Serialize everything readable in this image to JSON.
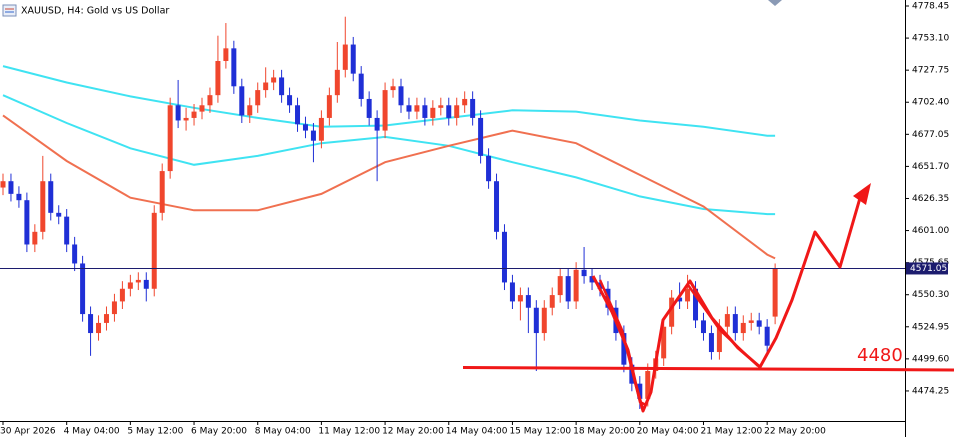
{
  "chart_data": {
    "type": "candlestick",
    "title": "XAUUSD, H4: Gold vs US Dollar",
    "categories": [
      "30 Apr 2026",
      null,
      null,
      null,
      null,
      null,
      null,
      null,
      "4 May 04:00",
      null,
      null,
      null,
      null,
      null,
      null,
      null,
      "5 May 12:00",
      null,
      null,
      null,
      null,
      null,
      null,
      null,
      "6 May 20:00",
      null,
      null,
      null,
      null,
      null,
      null,
      null,
      "8 May 04:00",
      null,
      null,
      null,
      null,
      null,
      null,
      null,
      "11 May 12:00",
      null,
      null,
      null,
      null,
      null,
      null,
      null,
      "12 May 20:00",
      null,
      null,
      null,
      null,
      null,
      null,
      null,
      "14 May 04:00",
      null,
      null,
      null,
      null,
      null,
      null,
      null,
      "15 May 12:00",
      null,
      null,
      null,
      null,
      null,
      null,
      null,
      "18 May 20:00",
      null,
      null,
      null,
      null,
      null,
      null,
      null,
      "20 May 04:00",
      null,
      null,
      null,
      null,
      null,
      null,
      null,
      "21 May 12:00",
      null,
      null,
      null,
      null,
      null,
      null,
      null,
      "22 May 20:00",
      null
    ],
    "open": [
      4635,
      4640,
      4630,
      4625,
      4590,
      4600,
      4640,
      4615,
      4612,
      4590,
      4575,
      4535,
      4520,
      4528,
      4535,
      4545,
      4555,
      4560,
      4562,
      4555,
      4615,
      4648,
      4700,
      4688,
      4690,
      4695,
      4700,
      4708,
      4735,
      4745,
      4715,
      4692,
      4700,
      4712,
      4718,
      4722,
      4708,
      4700,
      4685,
      4680,
      4672,
      4690,
      4708,
      4728,
      4748,
      4725,
      4705,
      4690,
      4680,
      4712,
      4715,
      4700,
      4695,
      4700,
      4690,
      4698,
      4700,
      4690,
      4700,
      4705,
      4690,
      4660,
      4640,
      4600,
      4560,
      4545,
      4550,
      4540,
      4520,
      4540,
      4550,
      4565,
      4545,
      4570,
      4565,
      4560,
      4555,
      4540,
      4520,
      4495,
      4480,
      4468,
      4490,
      4500,
      4525,
      4548,
      4545,
      4555,
      4530,
      4520,
      4505,
      4525,
      4535,
      4520,
      4528,
      4530,
      4525,
      4533
    ],
    "high": [
      4646,
      4646,
      4636,
      4631,
      4606,
      4660,
      4646,
      4621,
      4618,
      4596,
      4581,
      4541,
      4534,
      4541,
      4551,
      4561,
      4566,
      4568,
      4568,
      4621,
      4654,
      4706,
      4720,
      4698,
      4701,
      4706,
      4714,
      4755,
      4765,
      4751,
      4721,
      4706,
      4718,
      4730,
      4728,
      4728,
      4714,
      4706,
      4691,
      4686,
      4696,
      4714,
      4750,
      4770,
      4754,
      4731,
      4711,
      4696,
      4718,
      4721,
      4721,
      4706,
      4706,
      4706,
      4704,
      4706,
      4706,
      4706,
      4711,
      4711,
      4696,
      4666,
      4646,
      4606,
      4566,
      4556,
      4556,
      4546,
      4546,
      4556,
      4571,
      4571,
      4576,
      4588,
      4571,
      4566,
      4561,
      4546,
      4526,
      4501,
      4486,
      4496,
      4506,
      4531,
      4554,
      4560,
      4566,
      4561,
      4536,
      4526,
      4531,
      4541,
      4541,
      4534,
      4536,
      4536,
      4531,
      4575
    ],
    "low": [
      4629,
      4624,
      4619,
      4584,
      4584,
      4594,
      4609,
      4606,
      4584,
      4569,
      4529,
      4502,
      4514,
      4522,
      4529,
      4539,
      4549,
      4554,
      4545,
      4549,
      4609,
      4642,
      4682,
      4680,
      4684,
      4689,
      4694,
      4702,
      4729,
      4709,
      4686,
      4686,
      4694,
      4706,
      4712,
      4702,
      4694,
      4679,
      4674,
      4655,
      4666,
      4684,
      4702,
      4722,
      4719,
      4699,
      4684,
      4640,
      4674,
      4706,
      4694,
      4689,
      4689,
      4684,
      4684,
      4692,
      4684,
      4684,
      4694,
      4684,
      4654,
      4634,
      4594,
      4554,
      4539,
      4530,
      4520,
      4490,
      4514,
      4534,
      4544,
      4539,
      4539,
      4559,
      4554,
      4549,
      4534,
      4514,
      4489,
      4474,
      4460,
      4462,
      4484,
      4494,
      4519,
      4539,
      4539,
      4524,
      4514,
      4499,
      4499,
      4519,
      4514,
      4514,
      4522,
      4519,
      4504,
      4527
    ],
    "close": [
      4640,
      4630,
      4625,
      4590,
      4600,
      4640,
      4615,
      4612,
      4590,
      4575,
      4535,
      4520,
      4528,
      4535,
      4545,
      4555,
      4560,
      4562,
      4555,
      4615,
      4648,
      4700,
      4688,
      4690,
      4695,
      4700,
      4708,
      4735,
      4745,
      4715,
      4692,
      4700,
      4712,
      4718,
      4722,
      4708,
      4700,
      4685,
      4680,
      4672,
      4690,
      4708,
      4728,
      4748,
      4725,
      4705,
      4690,
      4680,
      4712,
      4715,
      4700,
      4695,
      4700,
      4690,
      4698,
      4700,
      4690,
      4700,
      4705,
      4690,
      4660,
      4640,
      4600,
      4560,
      4545,
      4550,
      4540,
      4520,
      4540,
      4550,
      4565,
      4545,
      4570,
      4565,
      4560,
      4555,
      4540,
      4520,
      4495,
      4480,
      4468,
      4490,
      4500,
      4525,
      4548,
      4545,
      4555,
      4530,
      4520,
      4505,
      4525,
      4535,
      4520,
      4528,
      4530,
      4525,
      4510,
      4571.05
    ],
    "up_color": "#f0462d",
    "down_color": "#1f2fd6",
    "moving_averages": [
      {
        "color": "#3fe3f2",
        "x": [
          0,
          8,
          16,
          24,
          32,
          40,
          48,
          56,
          64,
          72,
          80,
          88,
          96,
          97
        ],
        "values": [
          4731,
          4718,
          4707,
          4698,
          4690,
          4683,
          4684,
          4690,
          4696,
          4695,
          4688,
          4683,
          4676,
          4676
        ]
      },
      {
        "color": "#3fe3f2",
        "x": [
          0,
          8,
          16,
          24,
          32,
          40,
          48,
          56,
          64,
          72,
          80,
          88,
          96,
          97
        ],
        "values": [
          4708,
          4686,
          4666,
          4653,
          4660,
          4670,
          4675,
          4668,
          4655,
          4643,
          4628,
          4618,
          4614,
          4614
        ]
      },
      {
        "color": "#f07050",
        "x": [
          0,
          8,
          16,
          24,
          32,
          40,
          48,
          56,
          64,
          72,
          80,
          88,
          96,
          97
        ],
        "values": [
          4692,
          4656,
          4627,
          4617,
          4617,
          4630,
          4655,
          4668,
          4680,
          4670,
          4645,
          4620,
          4582,
          4579
        ]
      }
    ],
    "ylim": [
      4450.5,
      4783.2
    ],
    "yticks": [
      4778.45,
      {
        "value": 4753.1,
        "label": "4753.10"
      },
      4727.75,
      {
        "value": 4702.4,
        "label": "4702.40"
      },
      4677.05,
      {
        "value": 4651.7,
        "label": "4651.70"
      },
      4626.35,
      {
        "value": 4601,
        "label": "4601.00"
      },
      4575.65,
      {
        "value": 4550.3,
        "label": "4550.30"
      },
      4524.95,
      {
        "value": 4499.6,
        "label": "4499.60"
      },
      4474.25
    ],
    "last_price": 4571.05,
    "annotation": "4480"
  }
}
